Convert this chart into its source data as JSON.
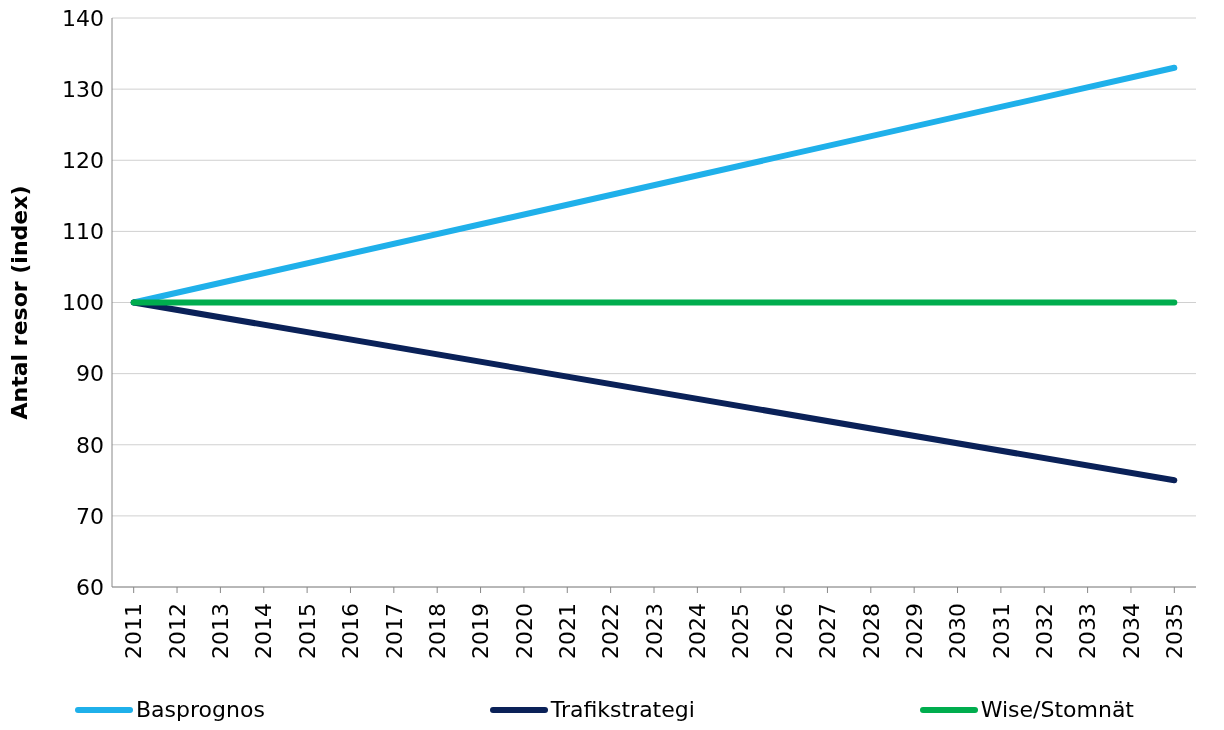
{
  "chart_data": {
    "type": "line",
    "ylabel": "Antal resor (index)",
    "xlim": [
      2010.5,
      2035.5
    ],
    "xticks": [
      2011,
      2012,
      2013,
      2014,
      2015,
      2016,
      2017,
      2018,
      2019,
      2020,
      2021,
      2022,
      2023,
      2024,
      2025,
      2026,
      2027,
      2028,
      2029,
      2030,
      2031,
      2032,
      2033,
      2034,
      2035
    ],
    "ylim": [
      60,
      140
    ],
    "yticks": [
      60,
      70,
      80,
      90,
      100,
      110,
      120,
      130,
      140
    ],
    "grid": "y",
    "legend": "bottom",
    "marker": "none",
    "line_style": "solid",
    "x": [
      2011,
      2035
    ],
    "series": [
      {
        "name": "Basprognos",
        "color": "#1fb0ea",
        "values": [
          100,
          133
        ]
      },
      {
        "name": "Trafikstrategi",
        "color": "#0a2158",
        "values": [
          100,
          75
        ]
      },
      {
        "name": "Wise/Stomnät",
        "color": "#00ad4e",
        "values": [
          100,
          100
        ]
      }
    ]
  }
}
